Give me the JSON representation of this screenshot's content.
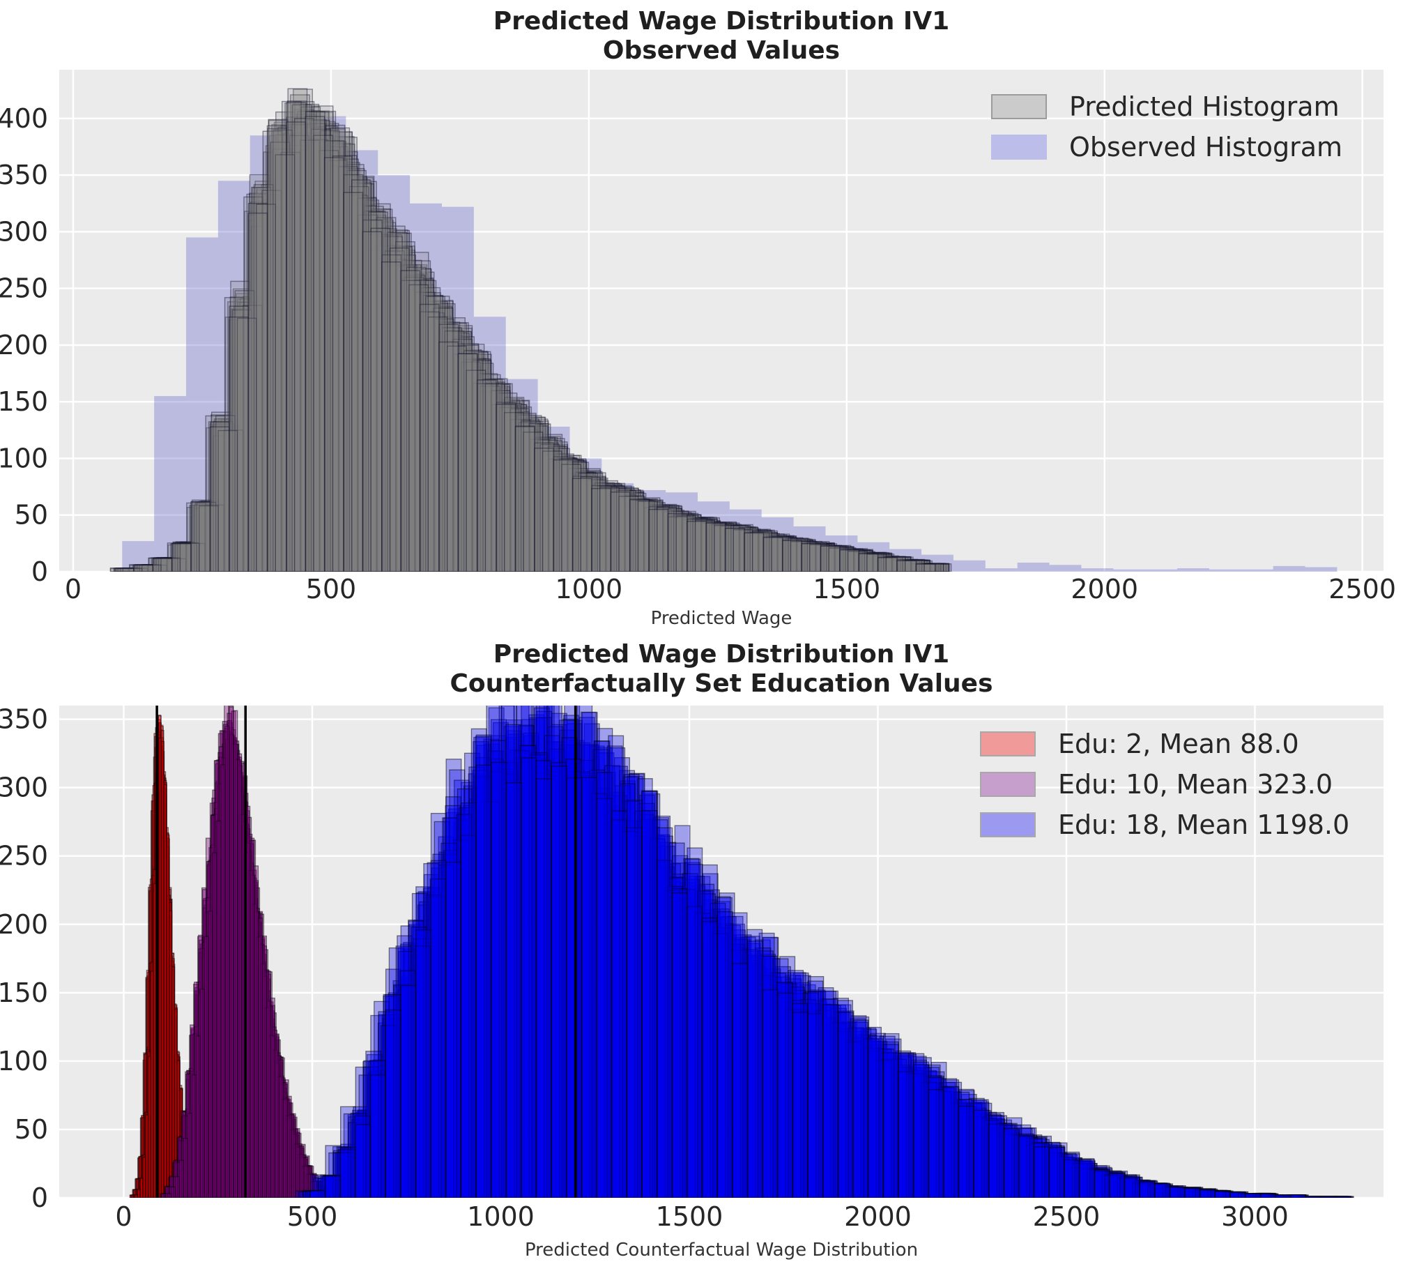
{
  "figure": {
    "background": "#ffffff",
    "axes_background": "#ebebeb",
    "grid_color": "#ffffff",
    "tick_color": "#262626",
    "title_color": "#1f1f1f",
    "mean_line_color": "#000000"
  },
  "chart_data": [
    {
      "id": "top",
      "type": "bar",
      "subtype": "overlaid-histograms",
      "title_line1": "Predicted Wage Distribution IV1",
      "title_line2": "Observed Values",
      "xlabel": "Predicted Wage",
      "xlim": [
        -27,
        2541
      ],
      "ylim": [
        0,
        443
      ],
      "xticks": [
        0,
        500,
        1000,
        1500,
        2000,
        2500
      ],
      "yticks": [
        0,
        50,
        100,
        150,
        200,
        250,
        300,
        350,
        400
      ],
      "grid": true,
      "legend_position": "upper right",
      "legend": [
        {
          "label": "Predicted Histogram",
          "swatch_fill": "#cbcbcb",
          "swatch_border": "#9c9c9c"
        },
        {
          "label": "Observed Histogram",
          "swatch_fill": "#bdbde9",
          "swatch_border": "#bdbde9"
        }
      ],
      "observed": {
        "name": "Observed Histogram",
        "bin_start": 95,
        "bin_width": 62,
        "fill": "#6666cc",
        "fill_opacity": 0.36,
        "heights": [
          27,
          155,
          295,
          345,
          385,
          400,
          402,
          372,
          350,
          325,
          322,
          225,
          170,
          128,
          100,
          78,
          72,
          70,
          62,
          55,
          48,
          40,
          32,
          26,
          20,
          15,
          10,
          3,
          8,
          6,
          3,
          2,
          2,
          3,
          2,
          2,
          5,
          4
        ]
      },
      "ensemble": {
        "name": "Predicted Histogram",
        "bin_start": 92,
        "bin_width": 37,
        "n_draws": 30,
        "seed": 42,
        "x_jitter": 20,
        "y_jitter": 0.05,
        "bin_jitter": 0.04,
        "fill": "#808080",
        "fill_opacity": 0.24,
        "edge": "#10102a",
        "edge_opacity": 0.45,
        "edge_width": 1.4,
        "heights": [
          3,
          6,
          12,
          25,
          60,
          130,
          235,
          330,
          383,
          398,
          390,
          370,
          340,
          305,
          285,
          262,
          235,
          210,
          188,
          165,
          148,
          130,
          112,
          98,
          85,
          76,
          70,
          62,
          56,
          50,
          46,
          42,
          39,
          35,
          31,
          28,
          25,
          22,
          19,
          16,
          13,
          10,
          7
        ]
      }
    },
    {
      "id": "bottom",
      "type": "bar",
      "subtype": "counterfactual-histogram-ensembles",
      "title_line1": "Predicted Wage Distribution IV1",
      "title_line2": "Counterfactually Set Education Values",
      "xlabel": "Predicted Counterfactual Wage Distribution",
      "xlim": [
        -171,
        3341
      ],
      "ylim": [
        0,
        360
      ],
      "xticks": [
        0,
        500,
        1000,
        1500,
        2000,
        2500,
        3000
      ],
      "yticks": [
        0,
        50,
        100,
        150,
        200,
        250,
        300,
        350
      ],
      "grid": true,
      "legend_position": "upper right",
      "legend": [
        {
          "label": "Edu: 2, Mean 88.0",
          "swatch_fill": "#f09a9a",
          "swatch_border": "#a8a8a8"
        },
        {
          "label": "Edu: 10, Mean 323.0",
          "swatch_fill": "#c79fcc",
          "swatch_border": "#a8a8a8"
        },
        {
          "label": "Edu: 18, Mean 1198.0",
          "swatch_fill": "#9b9af0",
          "swatch_border": "#a8a8a8"
        }
      ],
      "mean_lines": [
        88,
        323,
        1198
      ],
      "ensembles": [
        {
          "name": "Edu 2",
          "education": 2,
          "mean": 88.0,
          "bin_start": 25,
          "bin_width": 7,
          "n_draws": 18,
          "seed": 7,
          "x_jitter": 9,
          "y_jitter": 0.03,
          "bin_jitter": 0.03,
          "fill": "#ff0000",
          "fill_opacity": 0.34,
          "edge": "#000000",
          "edge_opacity": 0.5,
          "edge_width": 1.3,
          "heights": [
            2,
            6,
            14,
            30,
            60,
            105,
            165,
            230,
            295,
            338,
            330,
            300,
            260,
            215,
            172,
            135,
            103,
            78,
            58,
            42,
            30,
            21,
            15,
            10,
            7,
            5,
            3,
            2,
            1,
            1
          ]
        },
        {
          "name": "Edu 10",
          "education": 10,
          "mean": 323.0,
          "bin_start": 110,
          "bin_width": 11,
          "n_draws": 18,
          "seed": 11,
          "x_jitter": 13,
          "y_jitter": 0.03,
          "bin_jitter": 0.04,
          "fill": "#800080",
          "fill_opacity": 0.38,
          "edge": "#000000",
          "edge_opacity": 0.5,
          "edge_width": 1.3,
          "heights": [
            3,
            8,
            15,
            26,
            42,
            62,
            90,
            120,
            152,
            185,
            215,
            248,
            280,
            310,
            330,
            341,
            338,
            325,
            305,
            282,
            258,
            232,
            208,
            185,
            162,
            140,
            120,
            102,
            86,
            72,
            60,
            48,
            38,
            30,
            23,
            17,
            12,
            8,
            5,
            3,
            2
          ]
        },
        {
          "name": "Edu 18",
          "education": 18,
          "mean": 1198.0,
          "bin_start": 480,
          "bin_width": 40,
          "n_draws": 16,
          "seed": 18,
          "x_jitter": 26,
          "y_jitter": 0.03,
          "bin_jitter": 0.1,
          "fill": "#0000ee",
          "fill_opacity": 0.32,
          "edge": "#000000",
          "edge_opacity": 0.5,
          "edge_width": 1.3,
          "heights": [
            5,
            15,
            35,
            60,
            95,
            135,
            170,
            200,
            230,
            262,
            290,
            310,
            325,
            335,
            338,
            338,
            335,
            330,
            322,
            312,
            300,
            288,
            272,
            258,
            245,
            232,
            220,
            205,
            192,
            180,
            172,
            162,
            152,
            145,
            138,
            130,
            122,
            115,
            108,
            100,
            95,
            88,
            80,
            72,
            65,
            58,
            52,
            48,
            42,
            36,
            30,
            26,
            22,
            18,
            15,
            12,
            10,
            8,
            7,
            6,
            5,
            4,
            3,
            3,
            2,
            2,
            1,
            1,
            1,
            0
          ]
        }
      ]
    }
  ]
}
